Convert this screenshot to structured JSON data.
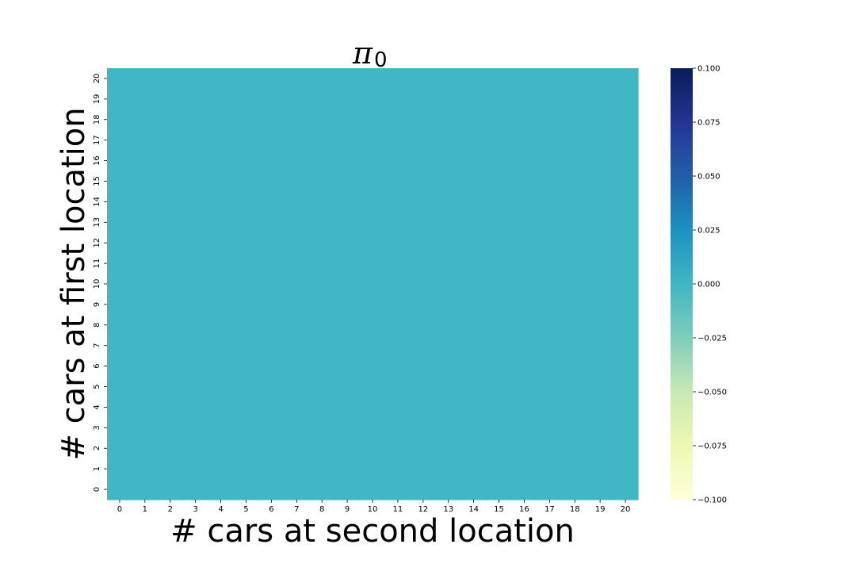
{
  "chart_data": {
    "type": "heatmap",
    "title": {
      "symbol": "π",
      "subscript": "0"
    },
    "xlabel": "# cars at second location",
    "ylabel": "# cars at first location",
    "x_categories": [
      "0",
      "1",
      "2",
      "3",
      "4",
      "5",
      "6",
      "7",
      "8",
      "9",
      "10",
      "11",
      "12",
      "13",
      "14",
      "15",
      "16",
      "17",
      "18",
      "19",
      "20"
    ],
    "y_categories": [
      "0",
      "1",
      "2",
      "3",
      "4",
      "5",
      "6",
      "7",
      "8",
      "9",
      "10",
      "11",
      "12",
      "13",
      "14",
      "15",
      "16",
      "17",
      "18",
      "19",
      "20"
    ],
    "values": "all 0 (21×21 grid, every cell = 0)",
    "fill_value": 0,
    "colormap": "YlGnBu",
    "colorbar": {
      "range": [
        -0.1,
        0.1
      ],
      "ticks": [
        "0.100",
        "0.075",
        "0.050",
        "0.025",
        "0.000",
        "−0.025",
        "−0.050",
        "−0.075",
        "−0.100"
      ],
      "tick_values": [
        0.1,
        0.075,
        0.05,
        0.025,
        0.0,
        -0.025,
        -0.05,
        -0.075,
        -0.1
      ]
    },
    "cell_color": "#41b6c4",
    "colorbar_stops": [
      "#081d58",
      "#253494",
      "#225ea8",
      "#1d91c0",
      "#41b6c4",
      "#7fcdbb",
      "#c7e9b4",
      "#edf8b1",
      "#ffffd9"
    ]
  }
}
